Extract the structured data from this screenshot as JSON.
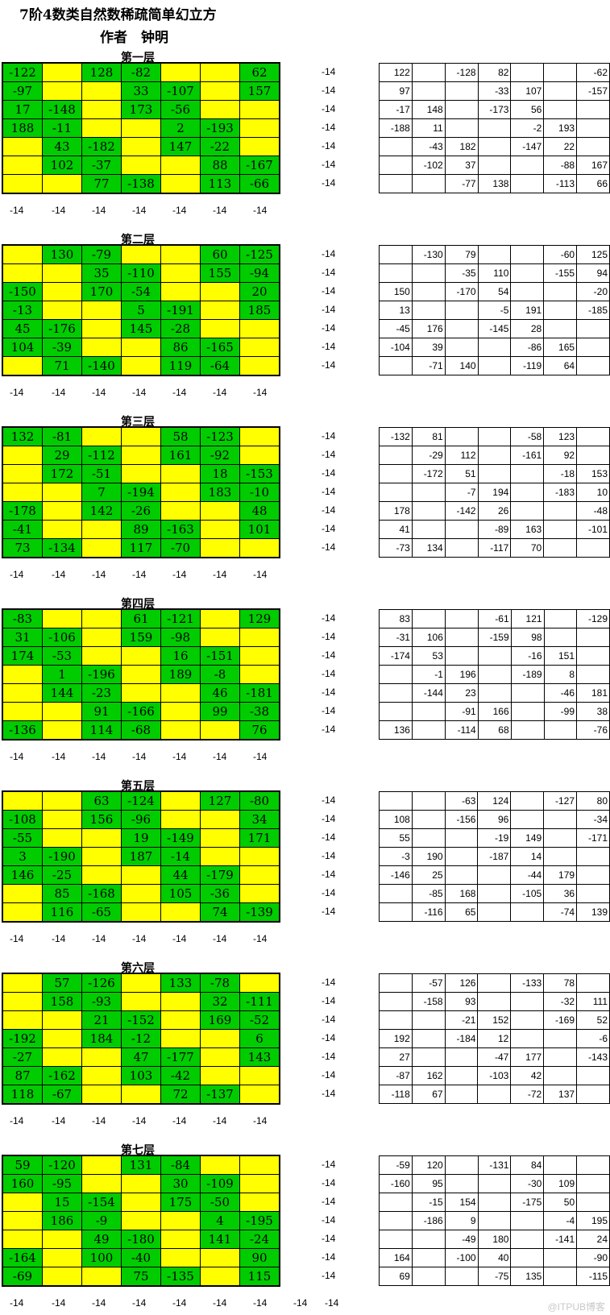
{
  "title": "7阶4数类自然数稀疏简单幻立方",
  "author": "作者　钟明",
  "magic_sum": "-14",
  "watermark": "@ITPUB博客",
  "extra_sum": "-14",
  "layers": [
    {
      "title": "第一层",
      "rows": [
        [
          "-122",
          "",
          "128",
          "-82",
          "",
          "",
          "62"
        ],
        [
          "-97",
          "",
          "",
          "33",
          "-107",
          "",
          "157"
        ],
        [
          "17",
          "-148",
          "",
          "173",
          "-56",
          "",
          ""
        ],
        [
          "188",
          "-11",
          "",
          "",
          "2",
          "-193",
          ""
        ],
        [
          "",
          "43",
          "-182",
          "",
          "147",
          "-22",
          ""
        ],
        [
          "",
          "102",
          "-37",
          "",
          "",
          "88",
          "-167"
        ],
        [
          "",
          "",
          "77",
          "-138",
          "",
          "113",
          "-66"
        ]
      ],
      "colors": [
        "GYGGYYG",
        "GYYGGYG",
        "GGYGGYY",
        "GGYYGGY",
        "YGGYGGY",
        "YGGYYGG",
        "YYGGYGG"
      ],
      "neg": [
        [
          "122",
          "",
          "-128",
          "82",
          "",
          "",
          "-62"
        ],
        [
          "97",
          "",
          "",
          "-33",
          "107",
          "",
          "-157"
        ],
        [
          "-17",
          "148",
          "",
          "-173",
          "56",
          "",
          ""
        ],
        [
          "-188",
          "11",
          "",
          "",
          "-2",
          "193",
          ""
        ],
        [
          "",
          "-43",
          "182",
          "",
          "-147",
          "22",
          ""
        ],
        [
          "",
          "-102",
          "37",
          "",
          "",
          "-88",
          "167"
        ],
        [
          "",
          "",
          "-77",
          "138",
          "",
          "-113",
          "66"
        ]
      ]
    },
    {
      "title": "第二层",
      "rows": [
        [
          "",
          "130",
          "-79",
          "",
          "",
          "60",
          "-125"
        ],
        [
          "",
          "",
          "35",
          "-110",
          "",
          "155",
          "-94"
        ],
        [
          "-150",
          "",
          "170",
          "-54",
          "",
          "",
          "20"
        ],
        [
          "-13",
          "",
          "",
          "5",
          "-191",
          "",
          "185"
        ],
        [
          "45",
          "-176",
          "",
          "145",
          "-28",
          "",
          ""
        ],
        [
          "104",
          "-39",
          "",
          "",
          "86",
          "-165",
          ""
        ],
        [
          "",
          "71",
          "-140",
          "",
          "119",
          "-64",
          ""
        ]
      ],
      "colors": [
        "YGGYYGG",
        "YYGGYGG",
        "GYGGYYG",
        "GYYGGYG",
        "GGYGGYY",
        "GGYYGGY",
        "YGGYGGY"
      ],
      "neg": [
        [
          "",
          "-130",
          "79",
          "",
          "",
          "-60",
          "125"
        ],
        [
          "",
          "",
          "-35",
          "110",
          "",
          "-155",
          "94"
        ],
        [
          "150",
          "",
          "-170",
          "54",
          "",
          "",
          "-20"
        ],
        [
          "13",
          "",
          "",
          "-5",
          "191",
          "",
          "-185"
        ],
        [
          "-45",
          "176",
          "",
          "-145",
          "28",
          "",
          ""
        ],
        [
          "-104",
          "39",
          "",
          "",
          "-86",
          "165",
          ""
        ],
        [
          "",
          "-71",
          "140",
          "",
          "-119",
          "64",
          ""
        ]
      ]
    },
    {
      "title": "第三层",
      "rows": [
        [
          "132",
          "-81",
          "",
          "",
          "58",
          "-123",
          ""
        ],
        [
          "",
          "29",
          "-112",
          "",
          "161",
          "-92",
          ""
        ],
        [
          "",
          "172",
          "-51",
          "",
          "",
          "18",
          "-153"
        ],
        [
          "",
          "",
          "7",
          "-194",
          "",
          "183",
          "-10"
        ],
        [
          "-178",
          "",
          "142",
          "-26",
          "",
          "",
          "48"
        ],
        [
          "-41",
          "",
          "",
          "89",
          "-163",
          "",
          "101"
        ],
        [
          "73",
          "-134",
          "",
          "117",
          "-70",
          "",
          ""
        ]
      ],
      "colors": [
        "GGYYGGY",
        "YGGYGGY",
        "YGGYYGG",
        "YYGGYGG",
        "GYGGYYG",
        "GYYGGYG",
        "GGYGGYY"
      ],
      "neg": [
        [
          "-132",
          "81",
          "",
          "",
          "-58",
          "123",
          ""
        ],
        [
          "",
          "-29",
          "112",
          "",
          "-161",
          "92",
          ""
        ],
        [
          "",
          "-172",
          "51",
          "",
          "",
          "-18",
          "153"
        ],
        [
          "",
          "",
          "-7",
          "194",
          "",
          "-183",
          "10"
        ],
        [
          "178",
          "",
          "-142",
          "26",
          "",
          "",
          "-48"
        ],
        [
          "41",
          "",
          "",
          "-89",
          "163",
          "",
          "-101"
        ],
        [
          "-73",
          "134",
          "",
          "-117",
          "70",
          "",
          ""
        ]
      ]
    },
    {
      "title": "第四层",
      "rows": [
        [
          "-83",
          "",
          "",
          "61",
          "-121",
          "",
          "129"
        ],
        [
          "31",
          "-106",
          "",
          "159",
          "-98",
          "",
          ""
        ],
        [
          "174",
          "-53",
          "",
          "",
          "16",
          "-151",
          ""
        ],
        [
          "",
          "1",
          "-196",
          "",
          "189",
          "-8",
          ""
        ],
        [
          "",
          "144",
          "-23",
          "",
          "",
          "46",
          "-181"
        ],
        [
          "",
          "",
          "91",
          "-166",
          "",
          "99",
          "-38"
        ],
        [
          "-136",
          "",
          "114",
          "-68",
          "",
          "",
          "76"
        ]
      ],
      "colors": [
        "GYYGGYG",
        "GGYGGYY",
        "GGYYGGY",
        "YGGYGGY",
        "YGGYYGG",
        "YYGGYGG",
        "GYGGYYG"
      ],
      "neg": [
        [
          "83",
          "",
          "",
          "-61",
          "121",
          "",
          "-129"
        ],
        [
          "-31",
          "106",
          "",
          "-159",
          "98",
          "",
          ""
        ],
        [
          "-174",
          "53",
          "",
          "",
          "-16",
          "151",
          ""
        ],
        [
          "",
          "-1",
          "196",
          "",
          "-189",
          "8",
          ""
        ],
        [
          "",
          "-144",
          "23",
          "",
          "",
          "-46",
          "181"
        ],
        [
          "",
          "",
          "-91",
          "166",
          "",
          "-99",
          "38"
        ],
        [
          "136",
          "",
          "-114",
          "68",
          "",
          "",
          "-76"
        ]
      ]
    },
    {
      "title": "第五层",
      "rows": [
        [
          "",
          "",
          "63",
          "-124",
          "",
          "127",
          "-80"
        ],
        [
          "-108",
          "",
          "156",
          "-96",
          "",
          "",
          "34"
        ],
        [
          "-55",
          "",
          "",
          "19",
          "-149",
          "",
          "171"
        ],
        [
          "3",
          "-190",
          "",
          "187",
          "-14",
          "",
          ""
        ],
        [
          "146",
          "-25",
          "",
          "",
          "44",
          "-179",
          ""
        ],
        [
          "",
          "85",
          "-168",
          "",
          "105",
          "-36",
          ""
        ],
        [
          "",
          "116",
          "-65",
          "",
          "",
          "74",
          "-139"
        ]
      ],
      "colors": [
        "YYGGYGG",
        "GYGGYYG",
        "GYYGGYG",
        "GGYGGYY",
        "GGYYGGY",
        "YGGYGGY",
        "YGGYYGG"
      ],
      "neg": [
        [
          "",
          "",
          "-63",
          "124",
          "",
          "-127",
          "80"
        ],
        [
          "108",
          "",
          "-156",
          "96",
          "",
          "",
          "-34"
        ],
        [
          "55",
          "",
          "",
          "-19",
          "149",
          "",
          "-171"
        ],
        [
          "-3",
          "190",
          "",
          "-187",
          "14",
          "",
          ""
        ],
        [
          "-146",
          "25",
          "",
          "",
          "-44",
          "179",
          ""
        ],
        [
          "",
          "-85",
          "168",
          "",
          "-105",
          "36",
          ""
        ],
        [
          "",
          "-116",
          "65",
          "",
          "",
          "-74",
          "139"
        ]
      ]
    },
    {
      "title": "第六层",
      "rows": [
        [
          "",
          "57",
          "-126",
          "",
          "133",
          "-78",
          ""
        ],
        [
          "",
          "158",
          "-93",
          "",
          "",
          "32",
          "-111"
        ],
        [
          "",
          "",
          "21",
          "-152",
          "",
          "169",
          "-52"
        ],
        [
          "-192",
          "",
          "184",
          "-12",
          "",
          "",
          "6"
        ],
        [
          "-27",
          "",
          "",
          "47",
          "-177",
          "",
          "143"
        ],
        [
          "87",
          "-162",
          "",
          "103",
          "-42",
          "",
          ""
        ],
        [
          "118",
          "-67",
          "",
          "",
          "72",
          "-137",
          ""
        ]
      ],
      "colors": [
        "YGGYGGY",
        "YGGYYGG",
        "YYGGYGG",
        "GYGGYYG",
        "GYYGGYG",
        "GGYGGYY",
        "GGYYGGY"
      ],
      "neg": [
        [
          "",
          "-57",
          "126",
          "",
          "-133",
          "78",
          ""
        ],
        [
          "",
          "-158",
          "93",
          "",
          "",
          "-32",
          "111"
        ],
        [
          "",
          "",
          "-21",
          "152",
          "",
          "-169",
          "52"
        ],
        [
          "192",
          "",
          "-184",
          "12",
          "",
          "",
          "-6"
        ],
        [
          "27",
          "",
          "",
          "-47",
          "177",
          "",
          "-143"
        ],
        [
          "-87",
          "162",
          "",
          "-103",
          "42",
          "",
          ""
        ],
        [
          "-118",
          "67",
          "",
          "",
          "-72",
          "137",
          ""
        ]
      ]
    },
    {
      "title": "第七层",
      "rows": [
        [
          "59",
          "-120",
          "",
          "131",
          "-84",
          "",
          ""
        ],
        [
          "160",
          "-95",
          "",
          "",
          "30",
          "-109",
          ""
        ],
        [
          "",
          "15",
          "-154",
          "",
          "175",
          "-50",
          ""
        ],
        [
          "",
          "186",
          "-9",
          "",
          "",
          "4",
          "-195"
        ],
        [
          "",
          "",
          "49",
          "-180",
          "",
          "141",
          "-24"
        ],
        [
          "-164",
          "",
          "100",
          "-40",
          "",
          "",
          "90"
        ],
        [
          "-69",
          "",
          "",
          "75",
          "-135",
          "",
          "115"
        ]
      ],
      "colors": [
        "GGYGGYY",
        "GGYYGGY",
        "YGGYGGY",
        "YGGYYGG",
        "YYGGYGG",
        "GYGGYYG",
        "GYYGGYG"
      ],
      "neg": [
        [
          "-59",
          "120",
          "",
          "-131",
          "84",
          "",
          ""
        ],
        [
          "-160",
          "95",
          "",
          "",
          "-30",
          "109",
          ""
        ],
        [
          "",
          "-15",
          "154",
          "",
          "-175",
          "50",
          ""
        ],
        [
          "",
          "-186",
          "9",
          "",
          "",
          "-4",
          "195"
        ],
        [
          "",
          "",
          "-49",
          "180",
          "",
          "-141",
          "24"
        ],
        [
          "164",
          "",
          "-100",
          "40",
          "",
          "",
          "-90"
        ],
        [
          "69",
          "",
          "",
          "-75",
          "135",
          "",
          "-115"
        ]
      ]
    }
  ]
}
